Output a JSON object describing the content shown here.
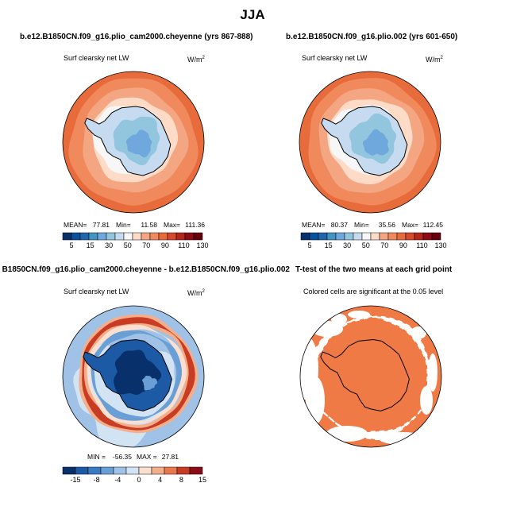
{
  "page_title": "JJA",
  "chart_data": [
    {
      "type": "heatmap",
      "projection": "south-polar-stereographic",
      "title": "b.e12.B1850CN.f09_g16.plio_cam2000.cheyenne (yrs 867-888)",
      "left_label": "Surf clearsky net LW",
      "right_label": "W/m",
      "right_label_sup": "2",
      "stats": {
        "mean_label": "MEAN=",
        "mean": "77.81",
        "min_label": "Min=",
        "min": "11.58",
        "max_label": "Max=",
        "max": "111.36"
      },
      "colorbar": {
        "levels": [
          "5",
          "15",
          "30",
          "50",
          "70",
          "90",
          "110",
          "130"
        ],
        "colors": [
          "#08306b",
          "#08519c",
          "#2166ac",
          "#4393c3",
          "#6fa8dc",
          "#92c5de",
          "#c6dbef",
          "#f7f7f7",
          "#fddbc7",
          "#f4a582",
          "#f08a5d",
          "#e86b3c",
          "#d6492a",
          "#b2261c",
          "#8b0c14",
          "#67000d"
        ]
      }
    },
    {
      "type": "heatmap",
      "projection": "south-polar-stereographic",
      "title": "b.e12.B1850CN.f09_g16.plio.002 (yrs 601-650)",
      "left_label": "Surf clearsky net LW",
      "right_label": "W/m",
      "right_label_sup": "2",
      "stats": {
        "mean_label": "MEAN=",
        "mean": "80.37",
        "min_label": "Min=",
        "min": "35.56",
        "max_label": "Max=",
        "max": "112.45"
      },
      "colorbar": {
        "levels": [
          "5",
          "15",
          "30",
          "50",
          "70",
          "90",
          "110",
          "130"
        ],
        "colors": [
          "#08306b",
          "#08519c",
          "#2166ac",
          "#4393c3",
          "#6fa8dc",
          "#92c5de",
          "#c6dbef",
          "#f7f7f7",
          "#fddbc7",
          "#f4a582",
          "#f08a5d",
          "#e86b3c",
          "#d6492a",
          "#b2261c",
          "#8b0c14",
          "#67000d"
        ]
      }
    },
    {
      "type": "heatmap",
      "projection": "south-polar-stereographic",
      "title": "B1850CN.f09_g16.plio_cam2000.cheyenne - b.e12.B1850CN.f09_g16.plio.002",
      "left_label": "Surf clearsky net LW",
      "right_label": "W/m",
      "right_label_sup": "2",
      "stats": {
        "min_label": "MIN =",
        "min": "-56.35",
        "max_label": "MAX =",
        "max": "27.81"
      },
      "colorbar": {
        "levels": [
          "-15",
          "-8",
          "-4",
          "0",
          "4",
          "8",
          "15"
        ],
        "colors": [
          "#08306b",
          "#1c5aa6",
          "#3a7ac4",
          "#6a9fd6",
          "#9fc2e6",
          "#d2e3f3",
          "#fbe0cf",
          "#f5ad8a",
          "#e8794f",
          "#c83c24",
          "#8b0c14"
        ]
      }
    },
    {
      "type": "heatmap",
      "projection": "south-polar-stereographic",
      "title": "T-test of the two means at each grid point",
      "left_label": "Colored cells are significant at the 0.05 level",
      "colors": {
        "significant": "#f07a45"
      }
    }
  ]
}
